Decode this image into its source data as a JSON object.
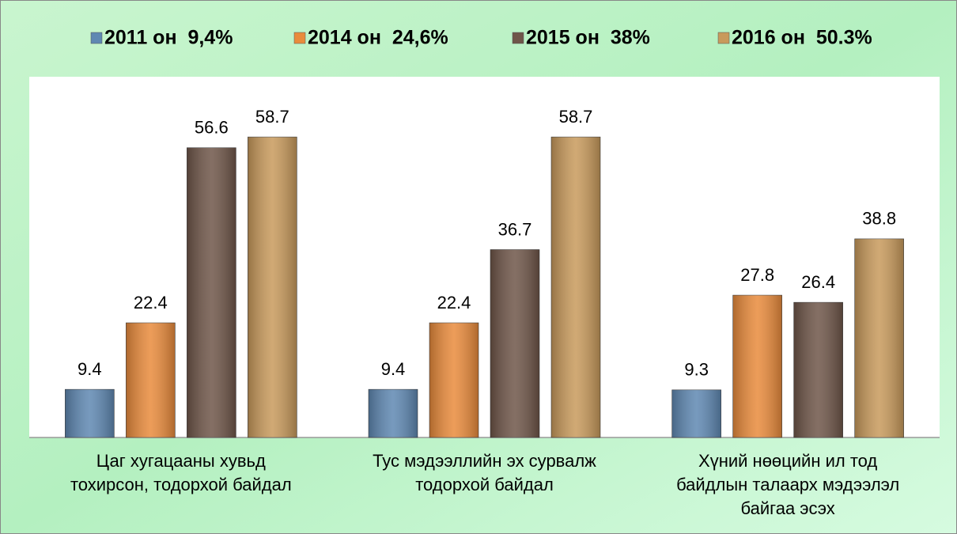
{
  "chart_data": {
    "type": "bar",
    "categories": [
      "Цаг хугацааны хувьд\nтохирсон, тодорхой байдал",
      "Тус мэдээллийн эх сурвалж\nтодорхой байдал",
      "Хүний нөөцийн ил тод\nбайдлын талаарх мэдээлэл\nбайгаа эсэх"
    ],
    "series": [
      {
        "name": "2011 он  9,4%",
        "color": "#5f88b2",
        "values": [
          9.4,
          9.4,
          9.3
        ]
      },
      {
        "name": "2014 он  24,6%",
        "color": "#e98b3c",
        "values": [
          22.4,
          22.4,
          27.8
        ]
      },
      {
        "name": "2015 он  38%",
        "color": "#6f5649",
        "values": [
          56.6,
          36.7,
          26.4
        ]
      },
      {
        "name": "2016 он  50.3%",
        "color": "#c89a5c",
        "values": [
          58.7,
          58.7,
          38.8
        ]
      }
    ],
    "ylim": [
      0,
      70
    ],
    "legend": "top"
  }
}
